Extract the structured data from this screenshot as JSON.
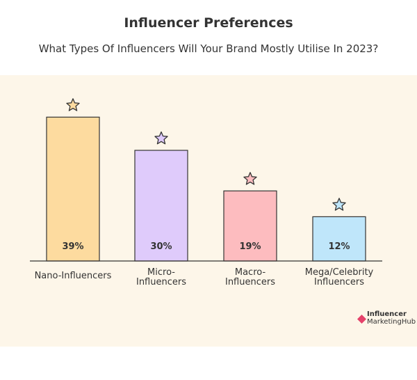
{
  "header": {
    "title": "Influencer Preferences",
    "subtitle": "What Types Of Influencers Will Your Brand Mostly Utilise In 2023?"
  },
  "brand": {
    "line1": "Influencer",
    "line2": "MarketingHub",
    "color": "#e5426b"
  },
  "chart_data": {
    "type": "bar",
    "title": "Influencer Preferences",
    "subtitle": "What Types Of Influencers Will Your Brand Mostly Utilise In 2023?",
    "categories": [
      [
        "Nano-Influencers"
      ],
      [
        "Micro-",
        "Influencers"
      ],
      [
        "Macro-",
        "Influencers"
      ],
      [
        "Mega/Celebrity",
        "Influencers"
      ]
    ],
    "values": [
      39,
      30,
      19,
      12
    ],
    "value_labels": [
      "39%",
      "30%",
      "19%",
      "12%"
    ],
    "colors": [
      "#fddb9f",
      "#dfcbfb",
      "#fdbcbf",
      "#bfe6fa"
    ],
    "marker": "star-icon",
    "xlabel": "",
    "ylabel": "",
    "ylim": [
      0,
      42
    ],
    "grid": false,
    "legend": "none"
  }
}
